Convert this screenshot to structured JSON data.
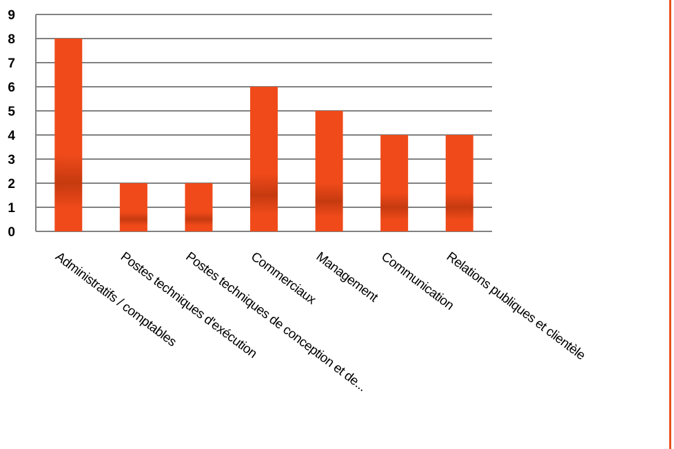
{
  "chart_data": {
    "type": "bar",
    "categories": [
      "Administratifs / comptables",
      "Postes techniques d'exécution",
      "Postes techniques de conception et de...",
      "Commerciaux",
      "Management",
      "Communication",
      "Relations publiques et clientèle"
    ],
    "values": [
      8,
      2,
      2,
      6,
      5,
      4,
      4
    ],
    "ylim": [
      0,
      9
    ],
    "yticks": [
      "0",
      "1",
      "2",
      "3",
      "4",
      "5",
      "6",
      "7",
      "8",
      "9"
    ],
    "grid": true,
    "legend": "none",
    "colors": {
      "bar_light": "#f04a1a",
      "bar_dark": "#c83a12",
      "grid": "#808080",
      "right_border": "#e8501f"
    }
  }
}
